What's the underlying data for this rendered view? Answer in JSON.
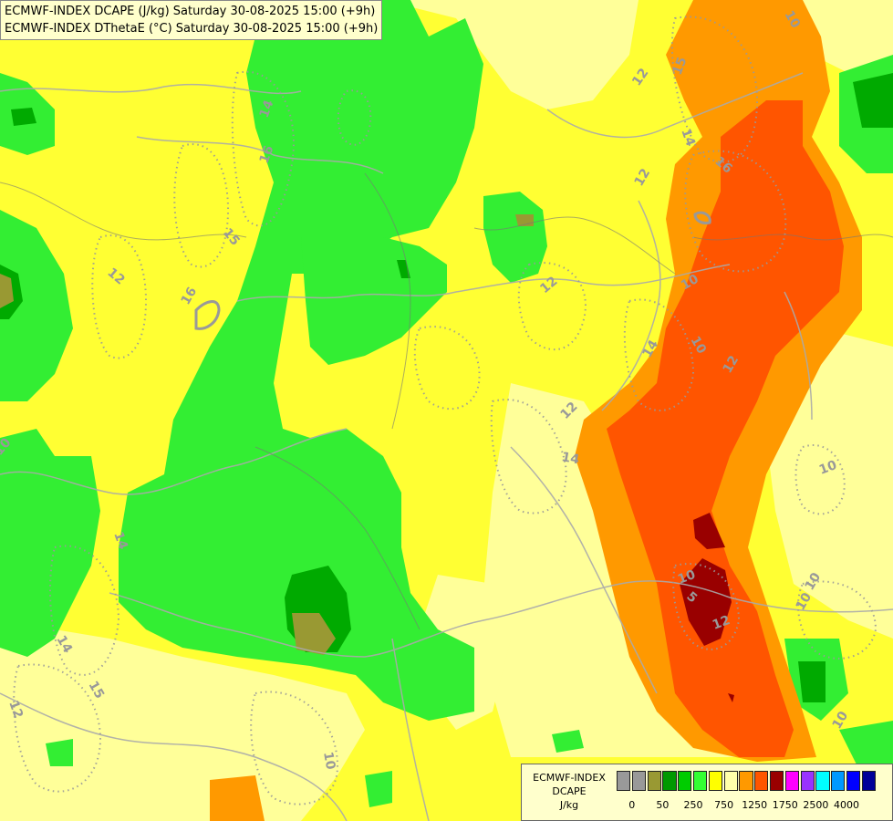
{
  "header": {
    "line1": "ECMWF-INDEX DCAPE (J/kg) Saturday 30-08-2025 15:00 (+9h)",
    "line2": "ECMWF-INDEX DThetaE (°C) Saturday 30-08-2025 15:00 (+9h)"
  },
  "legend": {
    "title_line1": "ECMWF-INDEX",
    "title_line2": "DCAPE",
    "title_line3": "J/kg",
    "colors": [
      "#999999",
      "#999999",
      "#999933",
      "#009900",
      "#00cc00",
      "#33ff33",
      "#ffff00",
      "#ffffaa",
      "#ff9900",
      "#ff5500",
      "#990000",
      "#ff00ff",
      "#9933ff",
      "#00ffff",
      "#0099ff",
      "#0000ff",
      "#000099"
    ],
    "tick_labels": [
      "0",
      "50",
      "250",
      "750",
      "1250",
      "1750",
      "2500",
      "4000"
    ]
  },
  "contour_labels": [
    "14",
    "16",
    "15",
    "12",
    "16",
    "10",
    "14",
    "12",
    "12",
    "12",
    "14",
    "15",
    "14",
    "16",
    "12",
    "10",
    "14",
    "10",
    "10",
    "12",
    "14",
    "10",
    "10",
    "10",
    "12",
    "10",
    "5",
    "15",
    "12",
    "10",
    "10"
  ]
}
